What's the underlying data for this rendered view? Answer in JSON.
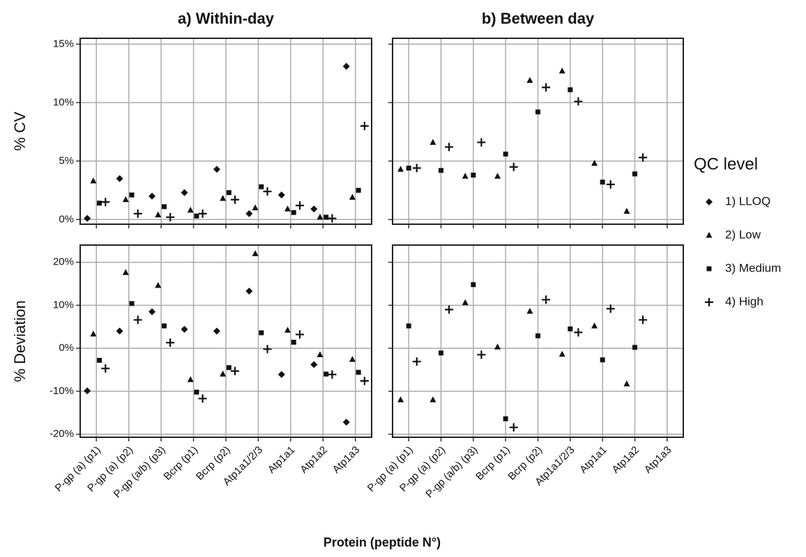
{
  "chart_data": [
    {
      "type": "scatter",
      "title": "a) Within-day",
      "y_label": "% CV",
      "ylim": [
        -0.4,
        15.5
      ],
      "yticks": [
        {
          "value": 0,
          "label": "0%"
        },
        {
          "value": 5,
          "label": "5%"
        },
        {
          "value": 10,
          "label": "10%"
        },
        {
          "value": 15,
          "label": "15%"
        }
      ],
      "series": [
        {
          "values": [
            0.1,
            3.5,
            2.0,
            2.3,
            4.3,
            0.5,
            2.1,
            0.9,
            13.1
          ]
        },
        {
          "values": [
            3.3,
            1.7,
            0.4,
            0.8,
            1.8,
            1.0,
            0.9,
            0.2,
            1.9
          ]
        },
        {
          "values": [
            1.4,
            2.1,
            1.1,
            0.3,
            2.3,
            2.8,
            0.6,
            0.2,
            2.5
          ]
        },
        {
          "values": [
            1.5,
            0.5,
            0.2,
            0.5,
            1.7,
            2.4,
            1.2,
            0.1,
            8.0
          ]
        }
      ]
    },
    {
      "type": "scatter",
      "title": "b) Between day",
      "series": [
        {
          "values": [
            null,
            null,
            null,
            null,
            null,
            null,
            null,
            null,
            null
          ]
        },
        {
          "values": [
            4.3,
            6.6,
            3.7,
            3.7,
            11.9,
            12.7,
            4.8,
            0.7,
            null
          ]
        },
        {
          "values": [
            4.4,
            4.2,
            3.8,
            5.6,
            9.2,
            11.1,
            3.2,
            3.9,
            null
          ]
        },
        {
          "values": [
            4.4,
            6.2,
            6.6,
            4.5,
            11.3,
            10.1,
            3.0,
            5.3,
            null
          ]
        }
      ]
    },
    {
      "type": "scatter",
      "y_label": "% Deviation",
      "ylim": [
        -20.7,
        24
      ],
      "yticks": [
        {
          "value": -20,
          "label": "-20%"
        },
        {
          "value": -10,
          "label": "-10%"
        },
        {
          "value": 0,
          "label": "0%"
        },
        {
          "value": 10,
          "label": "10%"
        },
        {
          "value": 20,
          "label": "20%"
        }
      ],
      "categories": [
        "P-gp (a) (p1)",
        "P-gp (a) (p2)",
        "P-gp (a/b) (p3)",
        "Bcrp (p1)",
        "Bcrp (p2)",
        "Atp1a1/2/3",
        "Atp1a1",
        "Atp1a2",
        "Atp1a3"
      ],
      "series": [
        {
          "values": [
            -9.9,
            4.0,
            8.5,
            4.4,
            4.0,
            13.3,
            -6.1,
            -3.8,
            -17.2
          ]
        },
        {
          "values": [
            3.3,
            17.6,
            14.6,
            -7.3,
            -6.0,
            22.0,
            4.2,
            -1.5,
            -2.6
          ]
        },
        {
          "values": [
            -2.8,
            10.4,
            5.2,
            -10.2,
            -4.5,
            3.6,
            1.4,
            -6.0,
            -5.6
          ]
        },
        {
          "values": [
            -4.7,
            6.6,
            1.3,
            -11.7,
            -5.3,
            -0.2,
            3.2,
            -6.1,
            -7.6
          ]
        }
      ]
    },
    {
      "type": "scatter",
      "categories": [
        "P-gp (a) (p1)",
        "P-gp (a) (p2)",
        "P-gp (a/b) (p3)",
        "Bcrp (p1)",
        "Bcrp (p2)",
        "Atp1a1/2/3",
        "Atp1a1",
        "Atp1a2",
        "Atp1a3"
      ],
      "series": [
        {
          "values": [
            null,
            null,
            null,
            null,
            null,
            null,
            null,
            null,
            null
          ]
        },
        {
          "values": [
            -12.0,
            -12.0,
            10.6,
            0.3,
            8.6,
            -1.4,
            5.2,
            -8.3,
            null
          ]
        },
        {
          "values": [
            5.2,
            -1.1,
            14.8,
            -16.4,
            2.9,
            4.5,
            -2.7,
            0.2,
            null
          ]
        },
        {
          "values": [
            -3.1,
            9.0,
            -1.5,
            -18.4,
            11.3,
            3.7,
            9.2,
            6.6,
            null
          ]
        }
      ]
    }
  ],
  "x_label": "Protein (peptide N°)",
  "color": "#111111",
  "legend": {
    "title": "QC level",
    "entries": [
      {
        "name": "1) LLOQ",
        "marker": "diamond"
      },
      {
        "name": "2) Low",
        "marker": "triangle"
      },
      {
        "name": "3) Medium",
        "marker": "square"
      },
      {
        "name": "4) High",
        "marker": "plus"
      }
    ]
  }
}
